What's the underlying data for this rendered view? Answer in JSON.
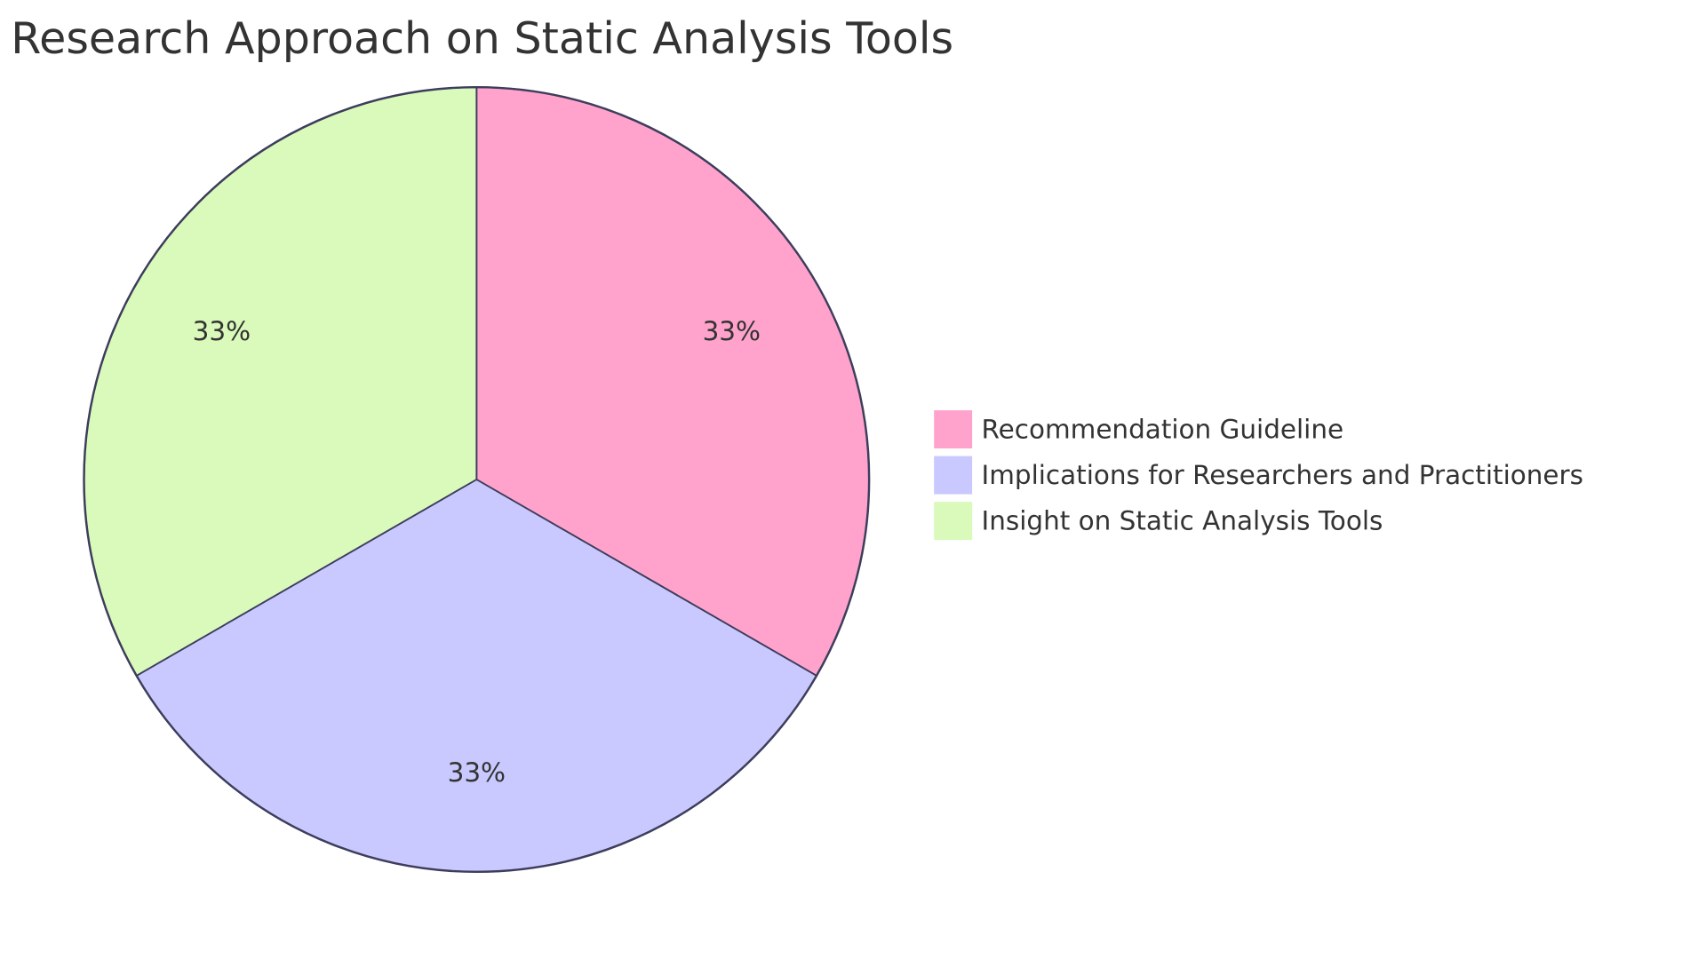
{
  "chart_data": {
    "type": "pie",
    "title": "Research Approach on Static Analysis Tools",
    "categories": [
      "Recommendation Guideline",
      "Implications for Researchers and Practitioners",
      "Insight on Static Analysis Tools"
    ],
    "values": [
      33,
      33,
      33
    ],
    "value_labels": [
      "33%",
      "33%",
      "33%"
    ],
    "colors": [
      "#ffa3cd",
      "#c9c9ff",
      "#dafabb"
    ],
    "legend": "right"
  }
}
